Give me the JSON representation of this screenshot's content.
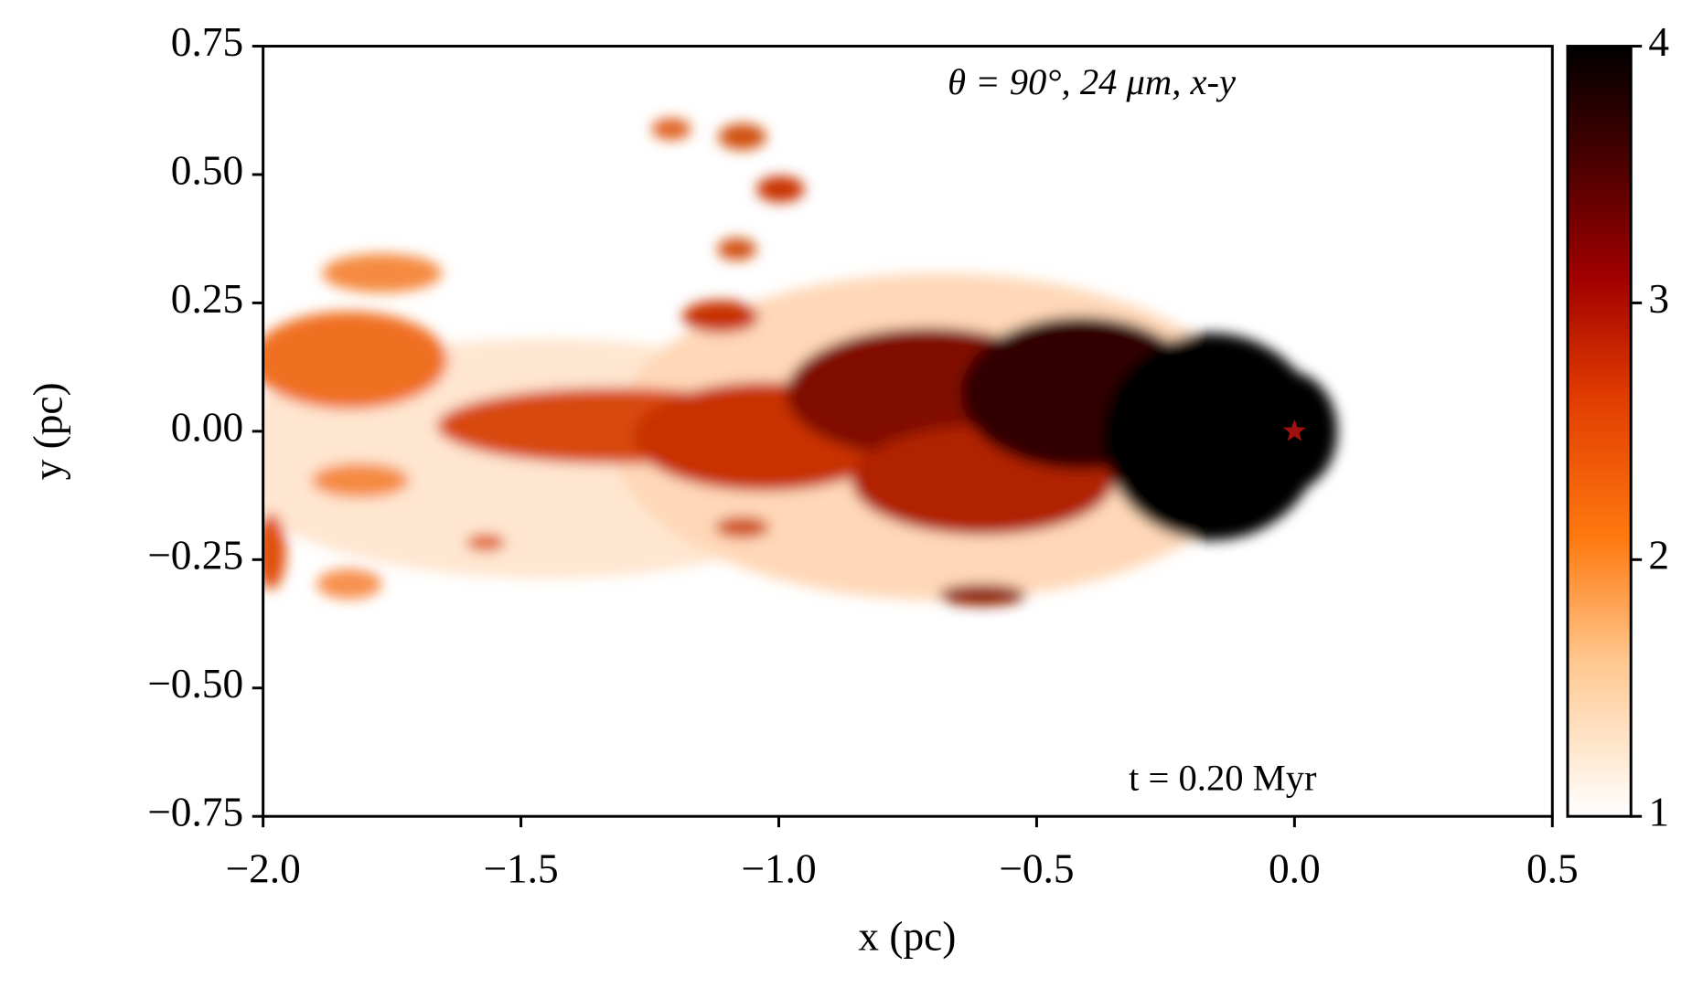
{
  "chart_data": {
    "type": "heatmap",
    "annotation": "θ = 90°, 24 μm, x-y",
    "time_label": "t = 0.20 Myr",
    "xlabel": "x (pc)",
    "ylabel": "y (pc)",
    "xlim": [
      -2,
      0.5
    ],
    "xticks": [
      {
        "value": -2,
        "label": "−2.0"
      },
      {
        "value": -1.5,
        "label": "−1.5"
      },
      {
        "value": -1,
        "label": "−1.0"
      },
      {
        "value": -0.5,
        "label": "−0.5"
      },
      {
        "value": 0,
        "label": "0.0"
      },
      0.5
    ],
    "ylim": [
      -0.75,
      0.75
    ],
    "yticks": [
      {
        "value": -0.75,
        "label": "−0.75"
      },
      {
        "value": -0.5,
        "label": "−0.50"
      },
      {
        "value": -0.25,
        "label": "−0.25"
      },
      {
        "value": 0,
        "label": "0.00"
      },
      0.25,
      {
        "value": 0.5,
        "label": "0.50"
      },
      0.75
    ],
    "clim": [
      1,
      4
    ],
    "cticks": [
      1,
      2,
      3,
      4
    ],
    "star": {
      "x": 0,
      "y": 0,
      "color": "#a01010"
    }
  }
}
